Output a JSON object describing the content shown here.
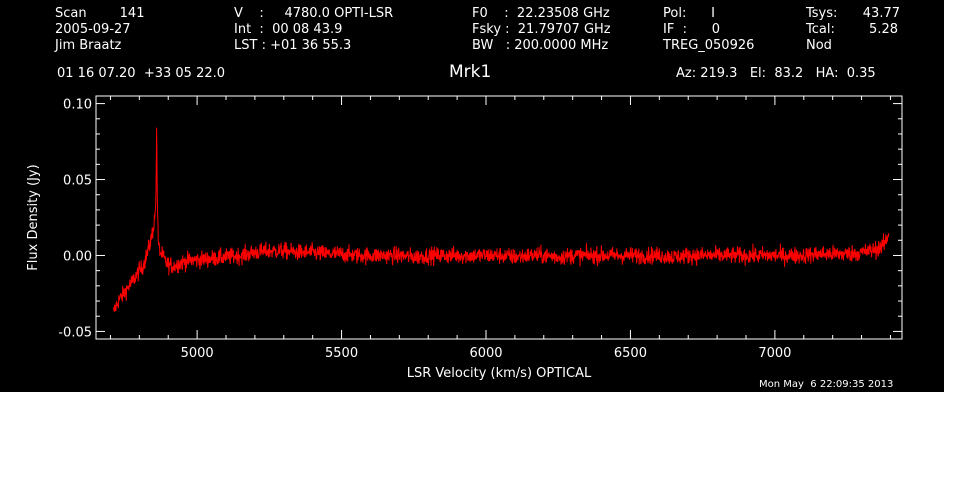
{
  "header": {
    "col1": [
      "Scan        141",
      "2005-09-27",
      "Jim Braatz"
    ],
    "col2": [
      "V    :     4780.0 OPTI-LSR",
      "Int  :  00 08 43.9",
      "LST : +01 36 55.3"
    ],
    "col3": [
      "F0    :  22.23508 GHz",
      "Fsky :  21.79707 GHz",
      "BW   : 200.0000 MHz"
    ],
    "col4": [
      "Pol:      I",
      "IF  :      0",
      "TREG_050926"
    ],
    "col5": [
      "Tsys:",
      "Tcal:",
      "Nod"
    ],
    "col6": [
      "43.77",
      "5.28"
    ],
    "coords": "01 16 07.20  +33 05 22.0",
    "az_el_ha": "Az: 219.3   El:  83.2   HA:  0.35"
  },
  "timestamp": "Mon May  6 22:09:35 2013",
  "colors": {
    "background": "#000000",
    "axes": "#ffffff",
    "series": "#ff0000"
  },
  "chart_data": {
    "type": "line",
    "title": "Mrk1",
    "xlabel": "LSR Velocity (km/s) OPTICAL",
    "ylabel": "Flux Density (Jy)",
    "xlim": [
      4650,
      7440
    ],
    "ylim": [
      -0.055,
      0.105
    ],
    "xticks": [
      5000,
      5500,
      6000,
      6500,
      7000
    ],
    "xtick_labels": [
      "5000",
      "5500",
      "6000",
      "6500",
      "7000"
    ],
    "yticks": [
      -0.05,
      0.0,
      0.05,
      0.1
    ],
    "ytick_labels": [
      "-0.05",
      "0.00",
      "0.05",
      "0.10"
    ],
    "grid": false,
    "series": [
      {
        "x": [
          4710,
          4720,
          4730,
          4740,
          4750,
          4760,
          4770,
          4780,
          4790,
          4800,
          4810,
          4820,
          4830,
          4840,
          4850,
          4855,
          4858,
          4860,
          4862,
          4864,
          4866,
          4870,
          4880,
          4890,
          4900,
          4920,
          4940,
          4960,
          4980,
          5000,
          5050,
          5100,
          5150,
          5200,
          5250,
          5300,
          5350,
          5400,
          5450,
          5500,
          5550,
          5600,
          5650,
          5700,
          5750,
          5800,
          5850,
          5900,
          5950,
          6000,
          6050,
          6100,
          6150,
          6200,
          6250,
          6300,
          6350,
          6400,
          6450,
          6500,
          6550,
          6600,
          6650,
          6700,
          6750,
          6800,
          6850,
          6900,
          6950,
          7000,
          7050,
          7100,
          7150,
          7200,
          7250,
          7300,
          7330,
          7350,
          7370,
          7380,
          7390,
          7395
        ],
        "y": [
          -0.038,
          -0.033,
          -0.029,
          -0.027,
          -0.024,
          -0.021,
          -0.019,
          -0.016,
          -0.013,
          -0.01,
          -0.008,
          -0.003,
          0.003,
          0.01,
          0.02,
          0.028,
          0.045,
          0.086,
          0.04,
          0.02,
          0.008,
          0.003,
          0.0,
          -0.004,
          -0.006,
          -0.007,
          -0.005,
          -0.004,
          -0.003,
          -0.003,
          -0.002,
          -0.001,
          0.0,
          0.002,
          0.003,
          0.003,
          0.002,
          0.002,
          0.001,
          0.001,
          0.0,
          0.0,
          0.0,
          0.0,
          -0.001,
          0.0,
          0.0,
          0.0,
          0.0,
          0.0,
          0.0,
          -0.001,
          0.0,
          0.0,
          -0.001,
          0.0,
          0.0,
          0.0,
          0.0,
          0.0,
          0.0,
          0.0,
          -0.001,
          0.0,
          0.0,
          0.0,
          0.0,
          0.0,
          0.0,
          0.0,
          0.0,
          0.0,
          0.001,
          0.001,
          0.001,
          0.002,
          0.003,
          0.004,
          0.006,
          0.008,
          0.012,
          0.016
        ],
        "noise_rms": 0.0055
      }
    ]
  }
}
